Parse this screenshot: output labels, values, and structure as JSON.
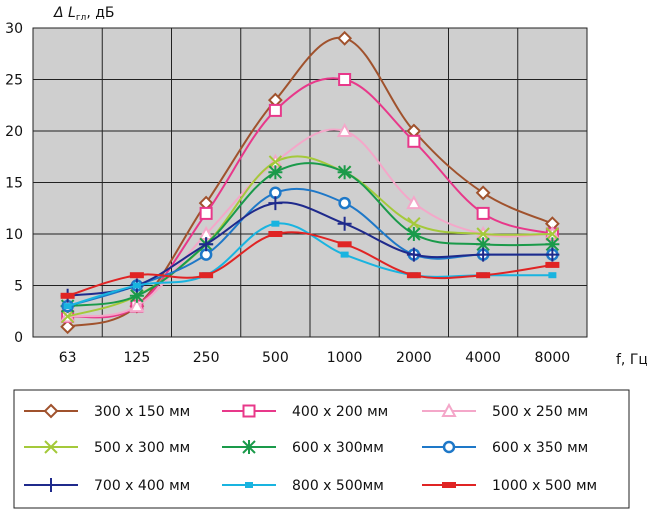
{
  "chart_data": {
    "type": "line",
    "ylabel_main": "Δ L",
    "ylabel_sub": "гл",
    "ylabel_unit": ", дБ",
    "xlabel": "f, Гц",
    "categories": [
      "63",
      "125",
      "250",
      "500",
      "1000",
      "2000",
      "4000",
      "8000"
    ],
    "ylim": [
      0,
      30
    ],
    "yticks": [
      "0",
      "5",
      "10",
      "15",
      "20",
      "25",
      "30"
    ],
    "grid": true,
    "legend_position": "bottom",
    "series": [
      {
        "name": "300 х 150 мм",
        "color": "#a0522d",
        "marker": "diamond",
        "values": [
          1,
          3,
          13,
          23,
          29,
          20,
          14,
          11
        ]
      },
      {
        "name": "400 х 200 мм",
        "color": "#e8388a",
        "marker": "square-open",
        "values": [
          2,
          3,
          12,
          22,
          25,
          19,
          12,
          10
        ]
      },
      {
        "name": "500 х 250 мм",
        "color": "#f4a7c9",
        "marker": "triangle",
        "values": [
          2,
          3,
          10,
          17,
          20,
          13,
          10,
          10
        ]
      },
      {
        "name": "500 х 300 мм",
        "color": "#a4c93a",
        "marker": "x",
        "values": [
          2,
          4,
          9,
          17,
          16,
          11,
          10,
          10
        ]
      },
      {
        "name": "600 х 300мм",
        "color": "#1a9a4a",
        "marker": "asterisk",
        "values": [
          3,
          4,
          9,
          16,
          16,
          10,
          9,
          9
        ]
      },
      {
        "name": "600 х 350 мм",
        "color": "#1e78c8",
        "marker": "circle",
        "values": [
          3,
          5,
          8,
          14,
          13,
          8,
          8,
          8
        ]
      },
      {
        "name": "700 х 400 мм",
        "color": "#1f2a8c",
        "marker": "plus",
        "values": [
          4,
          5,
          9,
          13,
          11,
          8,
          8,
          8
        ]
      },
      {
        "name": "800 х 500мм",
        "color": "#19b4e0",
        "marker": "square-small",
        "values": [
          3,
          5,
          6,
          11,
          8,
          6,
          6,
          6
        ]
      },
      {
        "name": "1000 х 500 мм",
        "color": "#e02424",
        "marker": "rect",
        "values": [
          4,
          6,
          6,
          10,
          9,
          6,
          6,
          7
        ]
      }
    ]
  }
}
